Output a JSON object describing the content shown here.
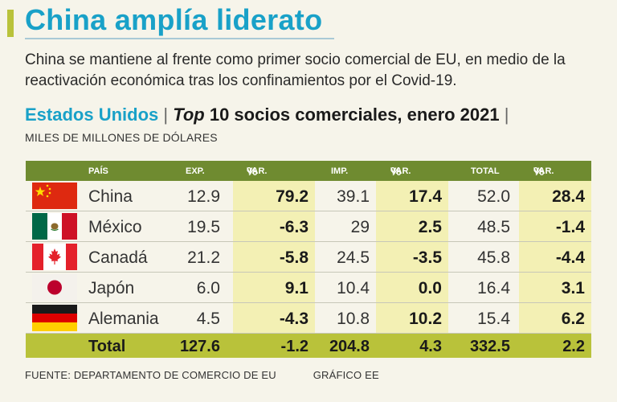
{
  "header": {
    "title": "China amplía liderato",
    "subtitle": "China se mantiene al frente como primer socio comercial de EU, en medio de la reactivación económica tras los confinamientos por el Covid-19."
  },
  "chart_heading": {
    "country": "Estados Unidos",
    "separator": "|",
    "top_word": "Top",
    "rest": "10 socios comerciales, enero 2021",
    "trailing_separator": "|",
    "units": "MILES DE MILLONES DE DÓLARES"
  },
  "chart_data": {
    "type": "table",
    "columns": {
      "country": "PAÍS",
      "exp": "EXP.",
      "exp_var_word": "VAR.",
      "exp_var_unit": "%",
      "imp": "IMP.",
      "imp_var_word": "VAR.",
      "imp_var_unit": "%",
      "total": "TOTAL",
      "total_var_word": "VAR.",
      "total_var_unit": "%"
    },
    "rows": [
      {
        "country": "China",
        "flag": "china-flag-icon",
        "exp": "12.9",
        "exp_var": "79.2",
        "imp": "39.1",
        "imp_var": "17.4",
        "total": "52.0",
        "total_var": "28.4"
      },
      {
        "country": "México",
        "flag": "mexico-flag-icon",
        "exp": "19.5",
        "exp_var": "-6.3",
        "imp": "29",
        "imp_var": "2.5",
        "total": "48.5",
        "total_var": "-1.4"
      },
      {
        "country": "Canadá",
        "flag": "canada-flag-icon",
        "exp": "21.2",
        "exp_var": "-5.8",
        "imp": "24.5",
        "imp_var": "-3.5",
        "total": "45.8",
        "total_var": "-4.4"
      },
      {
        "country": "Japón",
        "flag": "japan-flag-icon",
        "exp": "6.0",
        "exp_var": "9.1",
        "imp": "10.4",
        "imp_var": "0.0",
        "total": "16.4",
        "total_var": "3.1"
      },
      {
        "country": "Alemania",
        "flag": "germany-flag-icon",
        "exp": "4.5",
        "exp_var": "-4.3",
        "imp": "10.8",
        "imp_var": "10.2",
        "total": "15.4",
        "total_var": "6.2"
      }
    ],
    "total": {
      "label": "Total",
      "exp": "127.6",
      "exp_var": "-1.2",
      "imp": "204.8",
      "imp_var": "4.3",
      "total": "332.5",
      "total_var": "2.2"
    }
  },
  "footer": {
    "source": "FUENTE: DEPARTAMENTO DE COMERCIO DE EU",
    "credit": "GRÁFICO EE"
  },
  "colors": {
    "title": "#19a1c8",
    "header_green": "#6f8b30",
    "total_green": "#b9c23a",
    "highlight": "#f3f0b4"
  }
}
